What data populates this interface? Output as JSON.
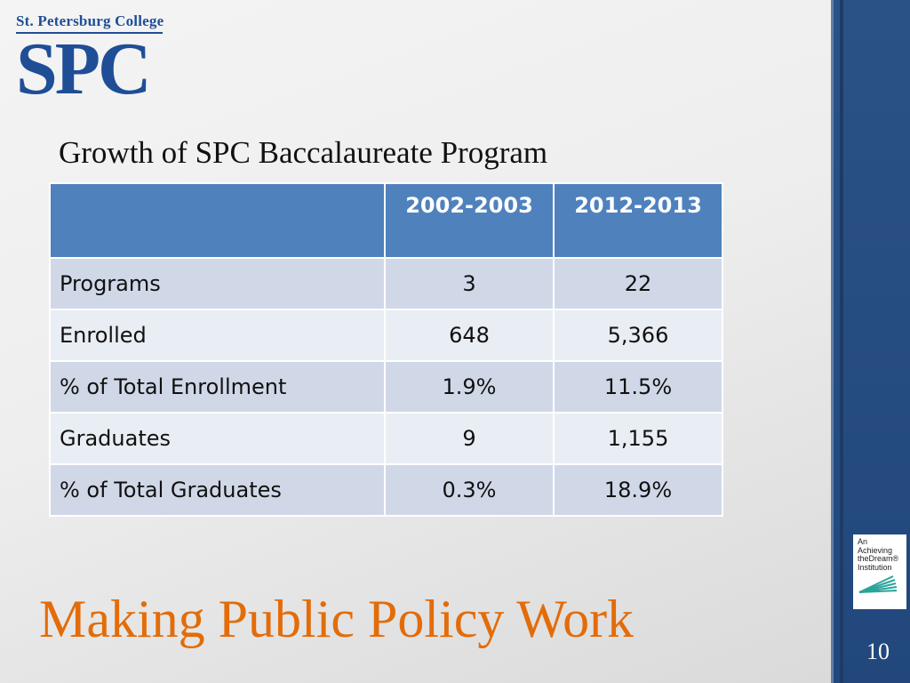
{
  "logo": {
    "college_name": "St. Petersburg College",
    "initials": "SPC"
  },
  "slide": {
    "title": "Growth of SPC Baccalaureate Program",
    "footer_title": "Making Public Policy Work",
    "page_number": "10"
  },
  "table": {
    "headers": [
      "",
      "2002-2003",
      "2012-2013"
    ],
    "rows": [
      {
        "label": "Programs",
        "v2002": "3",
        "v2012": "22"
      },
      {
        "label": "Enrolled",
        "v2002": "648",
        "v2012": "5,366"
      },
      {
        "label": "% of Total Enrollment",
        "v2002": "1.9%",
        "v2012": "11.5%"
      },
      {
        "label": "Graduates",
        "v2002": "9",
        "v2012": "1,155"
      },
      {
        "label": "% of Total Graduates",
        "v2002": "0.3%",
        "v2012": "18.9%"
      }
    ]
  },
  "badge": {
    "lines": [
      "An",
      "Achieving",
      "theDream®",
      "Institution"
    ]
  },
  "colors": {
    "brand_blue": "#1f4e97",
    "header_blue": "#4f81bd",
    "accent_orange": "#e36c09",
    "sidebar_navy": "#21477c"
  }
}
